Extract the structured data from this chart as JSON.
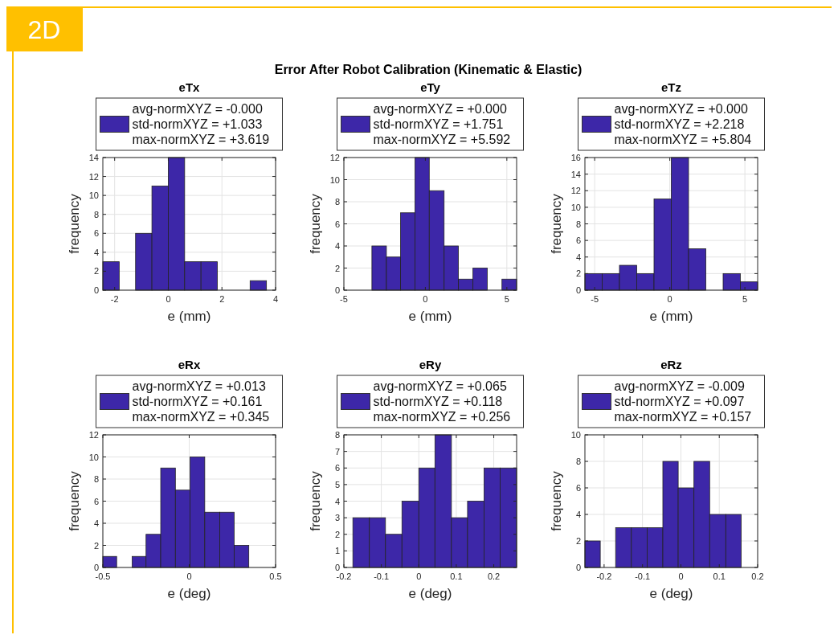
{
  "chart_data": [
    {
      "type": "histogram",
      "title": "eTx",
      "xlabel": "e (mm)",
      "ylabel": "frequency",
      "annotations": [
        "Error After Robot Calibration (Kinematic & Elastic)",
        "2D"
      ],
      "bins": [
        -2.44,
        -1.83,
        -1.22,
        -0.61,
        0,
        0.61,
        1.22,
        1.83,
        2.44,
        3.05,
        3.66
      ],
      "series": [
        {
          "name": "avg-normXYZ = -0.000\nstd-normXYZ = +1.033\nmax-normXYZ = +3.619",
          "color": "#3d27a8",
          "values": [
            3,
            0,
            6,
            11,
            14,
            3,
            3,
            0,
            0,
            1
          ]
        }
      ],
      "xlim": [
        -2.44,
        4
      ],
      "xticks": [
        -2,
        0,
        2,
        4
      ],
      "ylim": [
        0,
        14
      ],
      "yticks": [
        0,
        2,
        4,
        6,
        8,
        10,
        12,
        14
      ],
      "grid": true,
      "legend": "top"
    },
    {
      "type": "histogram",
      "title": "eTy",
      "xlabel": "e (mm)",
      "ylabel": "frequency",
      "bins": [
        -3.28,
        -2.39,
        -1.52,
        -0.64,
        0.24,
        1.15,
        2.03,
        2.92,
        3.8,
        4.7,
        5.6
      ],
      "series": [
        {
          "name": "avg-normXYZ = +0.000\nstd-normXYZ = +1.751\nmax-normXYZ = +5.592",
          "color": "#3d27a8",
          "values": [
            4,
            3,
            7,
            12,
            9,
            4,
            1,
            2,
            0,
            1
          ]
        }
      ],
      "xlim": [
        -5,
        5.6
      ],
      "xticks": [
        -5,
        0,
        5
      ],
      "ylim": [
        0,
        12
      ],
      "yticks": [
        0,
        2,
        4,
        6,
        8,
        10,
        12
      ],
      "grid": true,
      "legend": "top"
    },
    {
      "type": "histogram",
      "title": "eTz",
      "xlabel": "e (mm)",
      "ylabel": "frequency",
      "bins": [
        -5.65,
        -4.5,
        -3.35,
        -2.2,
        -1.05,
        0.1,
        1.25,
        2.4,
        3.55,
        4.7,
        5.85
      ],
      "series": [
        {
          "name": "avg-normXYZ = +0.000\nstd-normXYZ = +2.218\nmax-normXYZ = +5.804",
          "color": "#3d27a8",
          "values": [
            2,
            2,
            3,
            2,
            11,
            16,
            5,
            0,
            2,
            1
          ]
        }
      ],
      "xlim": [
        -5.65,
        5.85
      ],
      "xticks": [
        -5,
        0,
        5
      ],
      "ylim": [
        0,
        16
      ],
      "yticks": [
        0,
        2,
        4,
        6,
        8,
        10,
        12,
        14,
        16
      ],
      "grid": true,
      "legend": "top"
    },
    {
      "type": "histogram",
      "title": "eRx",
      "xlabel": "e (deg)",
      "ylabel": "frequency",
      "bins": [
        -0.5,
        -0.42,
        -0.33,
        -0.25,
        -0.165,
        -0.08,
        0.005,
        0.09,
        0.177,
        0.26,
        0.345
      ],
      "series": [
        {
          "name": "avg-normXYZ = +0.013\nstd-normXYZ = +0.161\nmax-normXYZ = +0.345",
          "color": "#3d27a8",
          "values": [
            1,
            0,
            1,
            3,
            9,
            7,
            10,
            5,
            5,
            2
          ]
        }
      ],
      "xlim": [
        -0.5,
        0.5
      ],
      "xticks": [
        -0.5,
        0,
        0.5
      ],
      "ylim": [
        0,
        12
      ],
      "yticks": [
        0,
        2,
        4,
        6,
        8,
        10,
        12
      ],
      "grid": true,
      "legend": "top"
    },
    {
      "type": "histogram",
      "title": "eRy",
      "xlabel": "e (deg)",
      "ylabel": "frequency",
      "bins": [
        -0.176,
        -0.132,
        -0.089,
        -0.045,
        0,
        0.043,
        0.087,
        0.13,
        0.174,
        0.217,
        0.261
      ],
      "series": [
        {
          "name": "avg-normXYZ = +0.065\nstd-normXYZ = +0.118\nmax-normXYZ = +0.256",
          "color": "#3d27a8",
          "values": [
            3,
            3,
            2,
            4,
            6,
            8,
            3,
            4,
            6,
            6
          ]
        }
      ],
      "xlim": [
        -0.2,
        0.261
      ],
      "xticks": [
        -0.2,
        -0.1,
        0,
        0.1,
        0.2
      ],
      "ylim": [
        0,
        8
      ],
      "yticks": [
        0,
        1,
        2,
        3,
        4,
        5,
        6,
        7,
        8
      ],
      "grid": true,
      "legend": "top"
    },
    {
      "type": "histogram",
      "title": "eRz",
      "xlabel": "e (deg)",
      "ylabel": "frequency",
      "bins": [
        -0.25,
        -0.21,
        -0.17,
        -0.129,
        -0.088,
        -0.047,
        -0.007,
        0.034,
        0.075,
        0.117,
        0.157
      ],
      "series": [
        {
          "name": "avg-normXYZ = -0.009\nstd-normXYZ = +0.097\nmax-normXYZ = +0.157",
          "color": "#3d27a8",
          "values": [
            2,
            0,
            3,
            3,
            3,
            8,
            6,
            8,
            4,
            4
          ]
        }
      ],
      "xlim": [
        -0.25,
        0.2
      ],
      "xticks": [
        -0.2,
        -0.1,
        0,
        0.1,
        0.2
      ],
      "ylim": [
        0,
        10
      ],
      "yticks": [
        0,
        2,
        4,
        6,
        8,
        10
      ],
      "grid": true,
      "legend": "top"
    }
  ]
}
